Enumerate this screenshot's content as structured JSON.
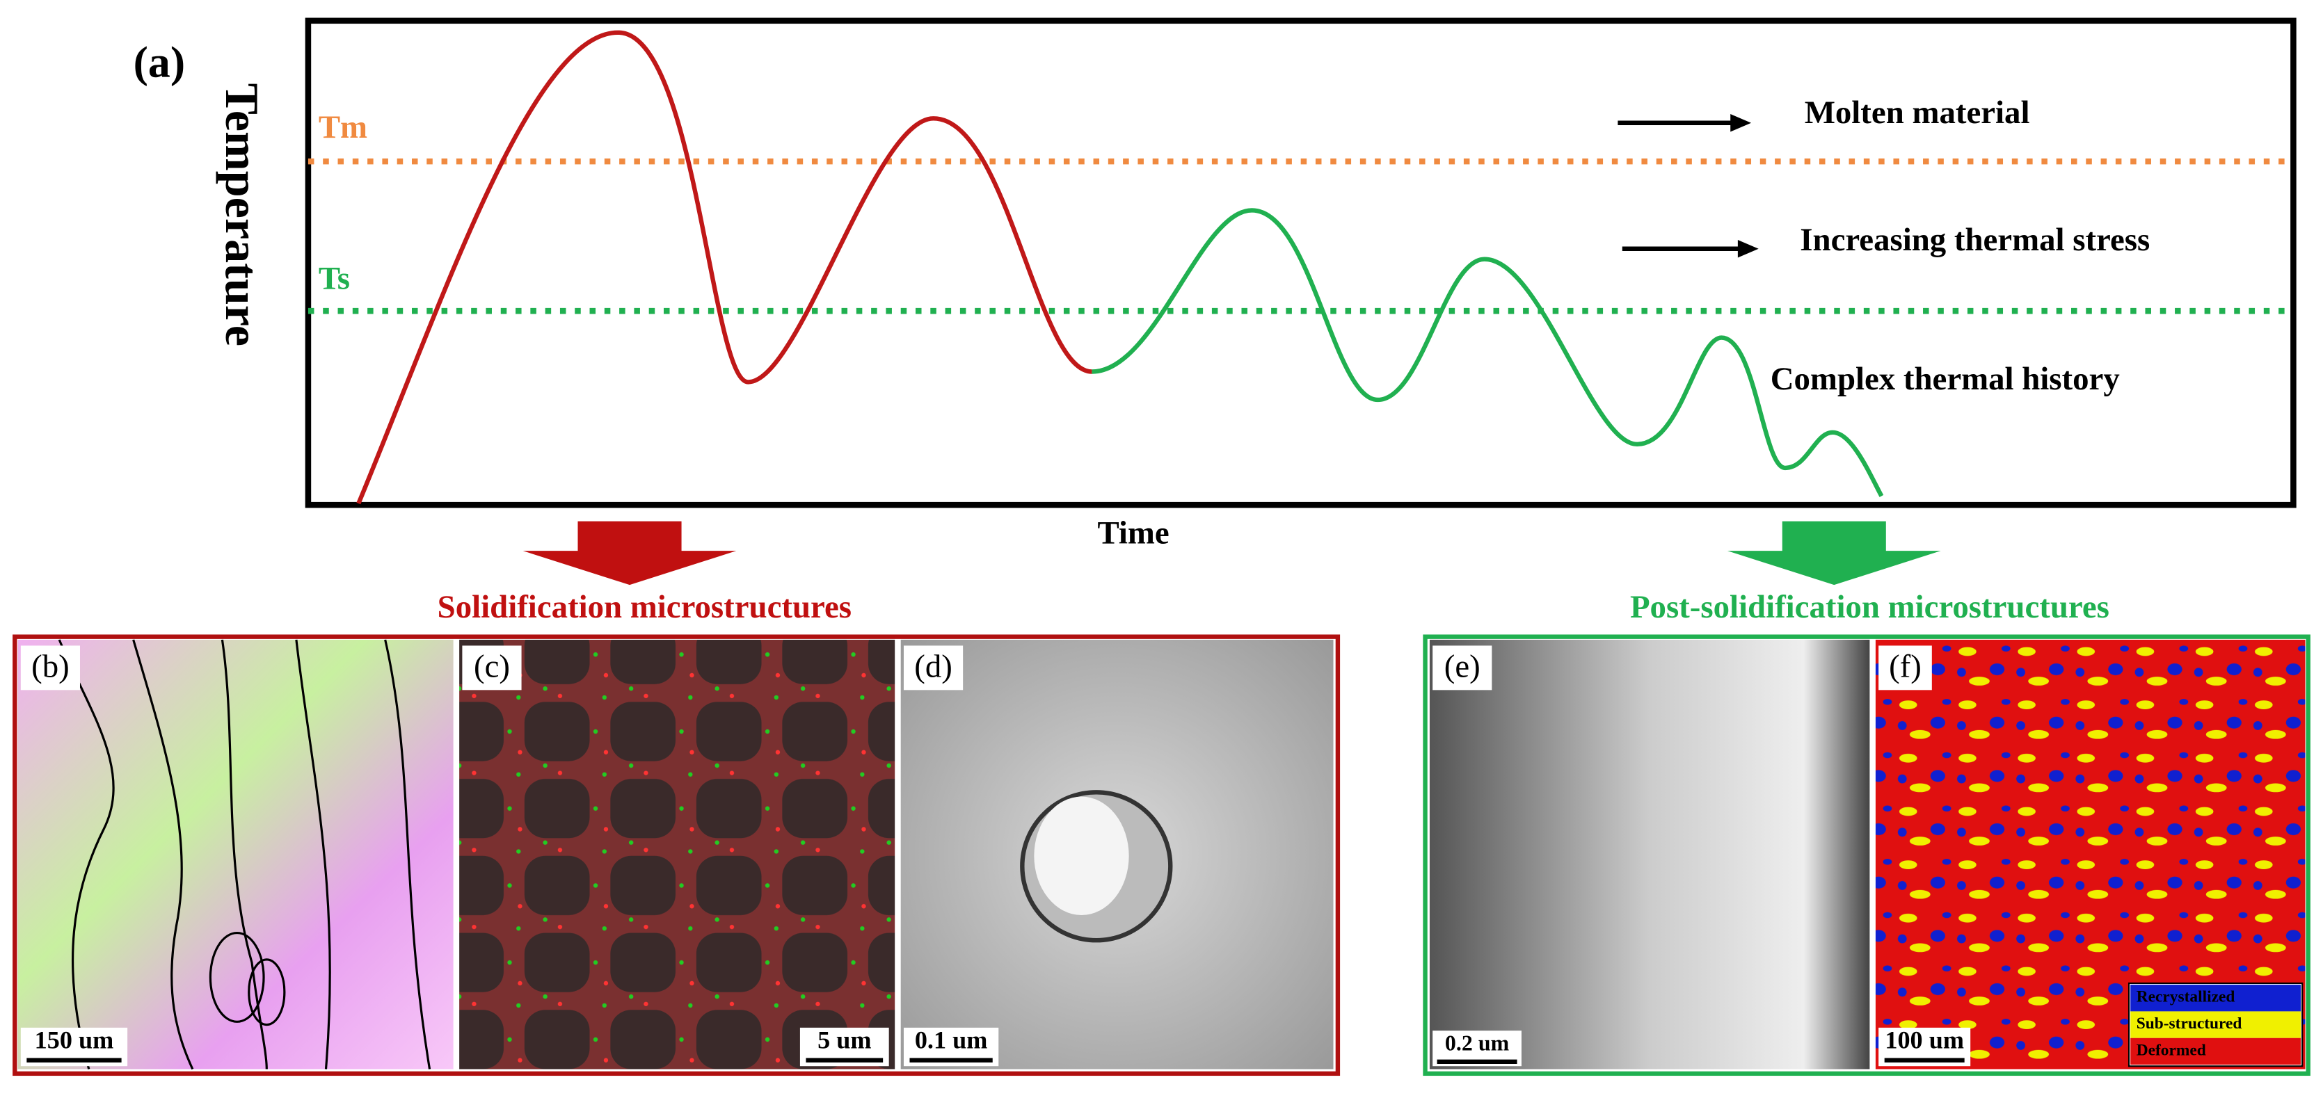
{
  "panel_a": {
    "label": "(a)",
    "y_axis_label": "Temperature",
    "x_axis_label": "Time",
    "levels": [
      {
        "label": "Tm"
      },
      {
        "label": "Ts"
      }
    ],
    "annotations": [
      "Molten material",
      "Increasing thermal stress",
      "Complex thermal history"
    ]
  },
  "solidification": {
    "title": "Solidification microstructures",
    "panels": [
      {
        "label": "(b)",
        "scale_bar": "150 um"
      },
      {
        "label": "(c)",
        "scale_bar": "5 um"
      },
      {
        "label": "(d)",
        "scale_bar": "0.1 um"
      }
    ]
  },
  "post_solidification": {
    "title": "Post-solidification microstructures",
    "panels": [
      {
        "label": "(e)",
        "scale_bar": "0.2 um"
      },
      {
        "label": "(f)",
        "scale_bar": "100 um",
        "legend": [
          "Recrystallized",
          "Sub-structured",
          "Deformed"
        ]
      }
    ]
  }
}
